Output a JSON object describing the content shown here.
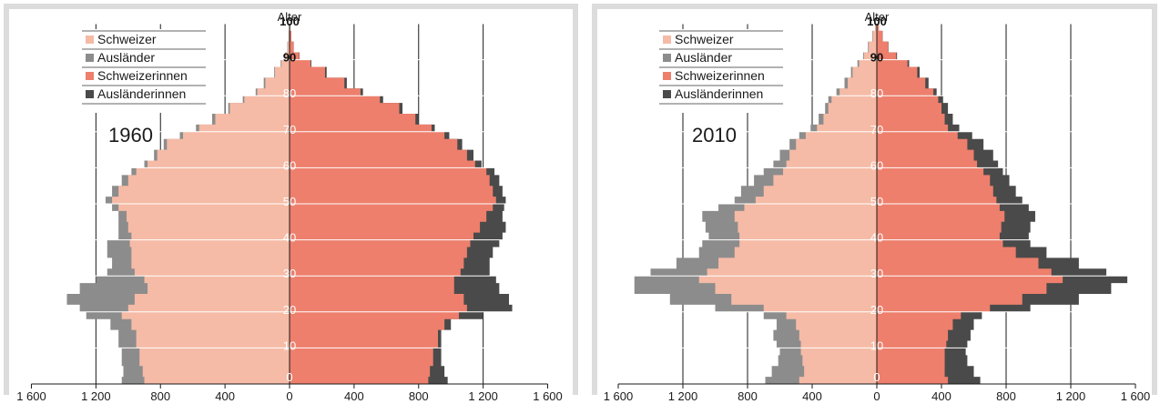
{
  "colors": {
    "schweizer": "#f5bba6",
    "auslaender": "#8c8c8c",
    "schweizerinnen": "#ed7f6c",
    "auslaenderinnen": "#4a4a4a",
    "gridline": "#1a1a1a",
    "agegrid": "#ffffff"
  },
  "chart_data": [
    {
      "type": "population-pyramid",
      "title": "1960",
      "ylabel": "Alter",
      "age_tick_labels": [
        "0",
        "10",
        "20",
        "30",
        "40",
        "50",
        "60",
        "70",
        "80",
        "90",
        "100"
      ],
      "age_range": [
        0,
        100
      ],
      "x_tick_labels": [
        "1 600",
        "1 200",
        "800",
        "400",
        "0",
        "400",
        "800",
        "1 200",
        "1 600"
      ],
      "xlim": [
        -1600,
        1600
      ],
      "legend": [
        "Schweizer",
        "Ausländer",
        "Schweizerinnen",
        "Ausländerinnen"
      ],
      "age_breakpoints": [
        0,
        2,
        5,
        10,
        15,
        18,
        20,
        22,
        25,
        28,
        30,
        32,
        35,
        38,
        40,
        42,
        45,
        48,
        50,
        52,
        55,
        58,
        60,
        62,
        65,
        68,
        70,
        72,
        75,
        78,
        80,
        82,
        85,
        88,
        90,
        92,
        95,
        98,
        100
      ],
      "series": [
        {
          "name": "Schweizer",
          "values": [
            900,
            910,
            930,
            950,
            980,
            1040,
            1000,
            960,
            880,
            900,
            960,
            980,
            980,
            990,
            980,
            1000,
            1010,
            1060,
            1100,
            1060,
            1000,
            950,
            880,
            820,
            760,
            660,
            560,
            460,
            370,
            280,
            200,
            150,
            90,
            50,
            25,
            12,
            5,
            2,
            0
          ]
        },
        {
          "name": "Ausländer",
          "values": [
            1040,
            1030,
            1040,
            1060,
            1110,
            1260,
            1300,
            1380,
            1300,
            1200,
            1130,
            1100,
            1130,
            1130,
            1060,
            1060,
            1060,
            1100,
            1140,
            1100,
            1040,
            980,
            900,
            840,
            780,
            680,
            580,
            480,
            380,
            290,
            210,
            160,
            95,
            55,
            28,
            14,
            6,
            3,
            0
          ]
        },
        {
          "name": "Schweizerinnen",
          "values": [
            860,
            870,
            890,
            920,
            960,
            1050,
            1100,
            1080,
            1020,
            1020,
            1060,
            1080,
            1100,
            1120,
            1140,
            1180,
            1220,
            1260,
            1280,
            1260,
            1240,
            1220,
            1150,
            1100,
            1040,
            960,
            880,
            780,
            680,
            560,
            440,
            340,
            220,
            130,
            60,
            25,
            10,
            4,
            0
          ]
        },
        {
          "name": "Ausländerinnen",
          "values": [
            980,
            960,
            940,
            940,
            1000,
            1200,
            1380,
            1360,
            1300,
            1280,
            1240,
            1240,
            1260,
            1300,
            1320,
            1340,
            1320,
            1330,
            1340,
            1320,
            1300,
            1270,
            1190,
            1140,
            1070,
            990,
            900,
            800,
            700,
            580,
            455,
            355,
            230,
            135,
            62,
            26,
            11,
            4,
            0
          ]
        }
      ]
    },
    {
      "type": "population-pyramid",
      "title": "2010",
      "ylabel": "Alter",
      "age_tick_labels": [
        "0",
        "10",
        "20",
        "30",
        "40",
        "50",
        "60",
        "70",
        "80",
        "90",
        "100"
      ],
      "age_range": [
        0,
        100
      ],
      "x_tick_labels": [
        "1 600",
        "1 200",
        "800",
        "400",
        "0",
        "400",
        "800",
        "1 200",
        "1 600"
      ],
      "xlim": [
        -1600,
        1600
      ],
      "legend": [
        "Schweizer",
        "Ausländer",
        "Schweizerinnen",
        "Ausländerinnen"
      ],
      "age_breakpoints": [
        0,
        2,
        5,
        8,
        10,
        12,
        15,
        18,
        20,
        22,
        25,
        28,
        30,
        32,
        35,
        38,
        40,
        42,
        45,
        48,
        50,
        52,
        55,
        58,
        60,
        62,
        65,
        68,
        70,
        72,
        75,
        78,
        80,
        82,
        85,
        88,
        90,
        92,
        95,
        98,
        100
      ],
      "series": [
        {
          "name": "Schweizer",
          "values": [
            480,
            450,
            460,
            470,
            470,
            480,
            500,
            560,
            700,
            900,
            1000,
            1100,
            1050,
            980,
            880,
            850,
            850,
            860,
            880,
            820,
            750,
            700,
            640,
            580,
            560,
            540,
            500,
            440,
            370,
            330,
            300,
            280,
            230,
            180,
            150,
            110,
            80,
            50,
            25,
            10,
            0
          ]
        },
        {
          "name": "Ausländer",
          "values": [
            690,
            650,
            610,
            600,
            620,
            640,
            620,
            700,
            1000,
            1280,
            1500,
            1500,
            1400,
            1240,
            1100,
            1080,
            1040,
            1060,
            1080,
            980,
            880,
            840,
            760,
            700,
            640,
            600,
            540,
            480,
            410,
            360,
            320,
            300,
            250,
            200,
            160,
            120,
            85,
            55,
            28,
            11,
            0
          ]
        },
        {
          "name": "Schweizerinnen",
          "values": [
            440,
            420,
            420,
            420,
            430,
            440,
            470,
            520,
            700,
            900,
            1050,
            1150,
            1080,
            1000,
            860,
            780,
            760,
            770,
            790,
            760,
            740,
            720,
            700,
            660,
            620,
            600,
            560,
            500,
            440,
            420,
            400,
            380,
            350,
            300,
            250,
            190,
            120,
            70,
            35,
            12,
            0
          ]
        },
        {
          "name": "Ausländerinnen",
          "values": [
            640,
            600,
            560,
            550,
            560,
            580,
            600,
            650,
            950,
            1250,
            1450,
            1550,
            1420,
            1250,
            1050,
            950,
            940,
            950,
            980,
            940,
            900,
            860,
            820,
            780,
            750,
            720,
            660,
            590,
            510,
            470,
            440,
            410,
            370,
            320,
            265,
            200,
            125,
            72,
            36,
            12,
            0
          ]
        }
      ]
    }
  ]
}
